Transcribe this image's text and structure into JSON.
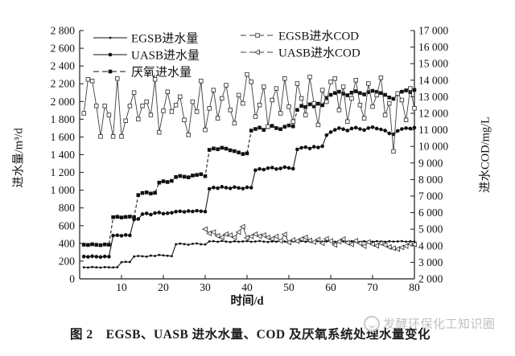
{
  "figure": {
    "caption": "图 2　EGSB、UASB 进水水量、COD 及厌氧系统处理水量变化",
    "watermark_text": "发酵环保化工知识圈"
  },
  "colors": {
    "axis": "#1a1a1a",
    "flow_line": "#111111",
    "cod_line": "#3d3d3d",
    "marker_fill": "#111111",
    "open_marker_fill": "#ffffff",
    "watermark": "#bdbdbd",
    "background": "#ffffff"
  },
  "chart_data": {
    "type": "line",
    "title": "",
    "xlabel": "时间/d",
    "ylabel_left": "进水量/m³/d",
    "ylabel_right": "进水COD/mg/L",
    "x_range": [
      0,
      80
    ],
    "ylim_left": [
      0,
      2800
    ],
    "ylim_right": [
      2000,
      17000
    ],
    "grid": false,
    "legend_position": "top-inside",
    "origin_label": "0",
    "x_ticks": [
      "10",
      "20",
      "30",
      "40",
      "50",
      "60",
      "70",
      "80"
    ],
    "left_ticks": [
      "0",
      "200",
      "400",
      "600",
      "800",
      "1 000",
      "1 200",
      "1 400",
      "1 600",
      "1 800",
      "2 000",
      "2 200",
      "2 400",
      "2 600",
      "2 800"
    ],
    "right_ticks": [
      "2 000",
      "3 000",
      "4 000",
      "5 000",
      "6 000",
      "7 000",
      "8 000",
      "9 000",
      "10 000",
      "11 000",
      "12 000",
      "13 000",
      "14 000",
      "15 000",
      "16 000",
      "17 000"
    ],
    "days": [
      1,
      2,
      3,
      4,
      5,
      6,
      7,
      8,
      9,
      10,
      11,
      12,
      13,
      14,
      15,
      16,
      17,
      18,
      19,
      20,
      21,
      22,
      23,
      24,
      25,
      26,
      27,
      28,
      29,
      30,
      31,
      32,
      33,
      34,
      35,
      36,
      37,
      38,
      39,
      40,
      41,
      42,
      43,
      44,
      45,
      46,
      47,
      48,
      49,
      50,
      51,
      52,
      53,
      54,
      55,
      56,
      57,
      58,
      59,
      60,
      61,
      62,
      63,
      64,
      65,
      66,
      67,
      68,
      69,
      70,
      71,
      72,
      73,
      74,
      75,
      76,
      77,
      78,
      79,
      80
    ],
    "series": [
      {
        "name": "EGSB进水量",
        "axis": "left",
        "marker": "dot",
        "line": "solid",
        "values": [
          130,
          128,
          133,
          130,
          127,
          132,
          130,
          129,
          131,
          188,
          192,
          190,
          252,
          258,
          255,
          250,
          262,
          258,
          270,
          265,
          260,
          256,
          390,
          398,
          392,
          385,
          395,
          400,
          390,
          388,
          422,
          425,
          418,
          428,
          420,
          415,
          424,
          419,
          422,
          426,
          418,
          421,
          427,
          420,
          416,
          423,
          419,
          425,
          421,
          418,
          424,
          420,
          426,
          419,
          422,
          417,
          425,
          420,
          423,
          421,
          418,
          426,
          422,
          419,
          424,
          420,
          417,
          423,
          421,
          419,
          425,
          421,
          418,
          424,
          420,
          422,
          426,
          419,
          423,
          420
        ]
      },
      {
        "name": "UASB进水量",
        "axis": "left",
        "marker": "circle",
        "line": "solid",
        "values": [
          252,
          248,
          255,
          250,
          246,
          253,
          250,
          488,
          492,
          486,
          495,
          490,
          668,
          675,
          730,
          738,
          725,
          742,
          748,
          735,
          740,
          745,
          758,
          762,
          755,
          765,
          760,
          768,
          762,
          758,
          1015,
          1030,
          1022,
          1038,
          1028,
          1020,
          1035,
          1025,
          1018,
          1032,
          1028,
          1225,
          1240,
          1232,
          1248,
          1255,
          1238,
          1245,
          1260,
          1250,
          1242,
          1460,
          1478,
          1485,
          1470,
          1490,
          1482,
          1495,
          1620,
          1655,
          1680,
          1700,
          1688,
          1672,
          1695,
          1705,
          1690,
          1678,
          1700,
          1710,
          1695,
          1685,
          1672,
          1640,
          1630,
          1668,
          1690,
          1700,
          1695,
          1705
        ]
      },
      {
        "name": "厌氧进水量",
        "axis": "left",
        "marker": "square",
        "line": "dashed",
        "values": [
          385,
          382,
          390,
          384,
          380,
          388,
          385,
          695,
          700,
          692,
          698,
          702,
          696,
          945,
          968,
          975,
          962,
          970,
          1085,
          1100,
          1092,
          1105,
          1148,
          1160,
          1152,
          1145,
          1165,
          1172,
          1180,
          1158,
          1455,
          1470,
          1462,
          1478,
          1468,
          1450,
          1440,
          1425,
          1408,
          1415,
          1672,
          1690,
          1705,
          1680,
          1712,
          1725,
          1700,
          1688,
          1715,
          1730,
          1720,
          1905,
          1950,
          1938,
          1968,
          1945,
          1975,
          1958,
          2040,
          2075,
          2095,
          2110,
          2088,
          2070,
          2100,
          2115,
          2095,
          2080,
          2105,
          2120,
          2108,
          2095,
          2075,
          2045,
          2030,
          2085,
          2110,
          2125,
          2105,
          2130
        ]
      },
      {
        "name": "EGSB进水COD",
        "axis": "right",
        "marker": "open-square",
        "line": "solid",
        "values": [
          12000,
          14050,
          13950,
          12450,
          10600,
          12450,
          11900,
          10600,
          14100,
          10600,
          11550,
          12450,
          13250,
          11650,
          12450,
          12700,
          11900,
          14050,
          10850,
          12150,
          13300,
          12100,
          12500,
          13000,
          11600,
          10700,
          12700,
          12100,
          13950,
          11000,
          12300,
          13400,
          11700,
          12900,
          13700,
          12200,
          11400,
          13100,
          12600,
          14350,
          13900,
          11800,
          12500,
          13600,
          11200,
          12800,
          13500,
          12000,
          14100,
          12400,
          11500,
          13800,
          12900,
          11900,
          14200,
          12600,
          11300,
          13400,
          12700,
          13900,
          14100,
          12200,
          13600,
          11500,
          12900,
          14000,
          12500,
          11700,
          13800,
          12400,
          13100,
          14150,
          11900,
          12600,
          9700,
          13200,
          12800,
          11600,
          13500,
          12300
        ]
      },
      {
        "name": "UASB进水COD",
        "axis": "right",
        "marker": "open-triangle",
        "line": "solid",
        "values": [
          null,
          null,
          null,
          null,
          null,
          null,
          null,
          null,
          null,
          null,
          null,
          null,
          null,
          null,
          null,
          null,
          null,
          null,
          null,
          null,
          null,
          null,
          null,
          null,
          null,
          null,
          null,
          null,
          null,
          5000,
          4750,
          4820,
          4600,
          4510,
          4700,
          4640,
          4500,
          4820,
          5150,
          4480,
          4560,
          4700,
          4580,
          4640,
          4500,
          4420,
          4560,
          4300,
          4680,
          4200,
          4350,
          4280,
          4400,
          4500,
          4320,
          4220,
          4380,
          4150,
          4420,
          4280,
          4050,
          4250,
          4400,
          4180,
          4080,
          4300,
          4150,
          3980,
          4220,
          4100,
          4000,
          4150,
          4050,
          3920,
          3850,
          3800,
          3900,
          3980,
          4120,
          4080
        ]
      }
    ]
  }
}
